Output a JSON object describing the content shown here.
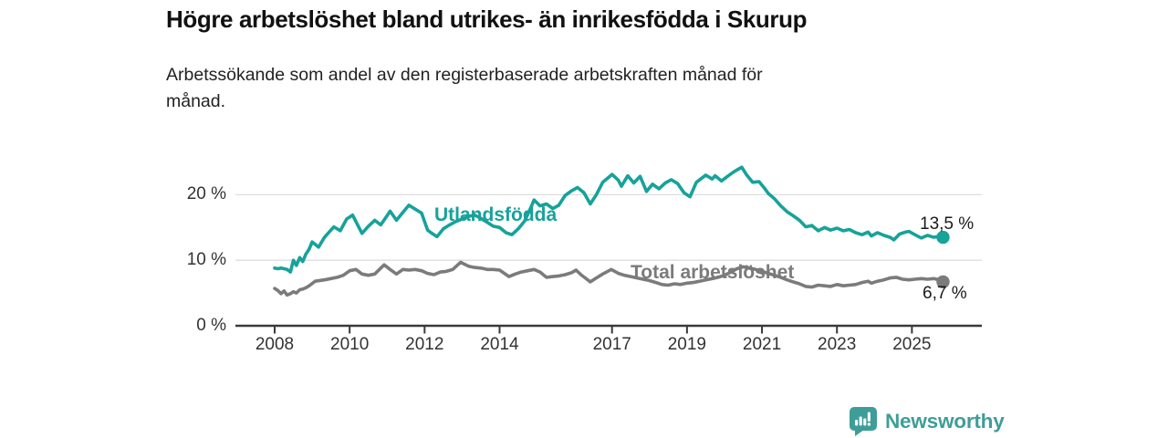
{
  "header": {
    "title": "Högre arbetslöshet bland utrikes- än inrikesfödda i Skurup",
    "subtitle": "Arbetssökande som andel av den registerbaserade arbetskraften månad för\nmånad."
  },
  "footer": {
    "brand": "Newsworthy"
  },
  "colors": {
    "accent_teal": "#17a29a",
    "line_gray": "#7b7b7b",
    "logo_teal": "#3f9d98",
    "grid": "#dedede",
    "axis": "#3a3a3a",
    "tick_text": "#333333",
    "title_text": "#111111"
  },
  "chart_data": {
    "type": "line",
    "title": "Högre arbetslöshet bland utrikes- än inrikesfödda i Skurup",
    "subtitle": "Arbetssökande som andel av den registerbaserade arbetskraften månad för månad.",
    "xlabel": "",
    "ylabel": "%",
    "grid": "horizontal",
    "x_axis": {
      "ticks": [
        2008,
        2010,
        2012,
        2014,
        2017,
        2019,
        2021,
        2023,
        2025
      ],
      "tick_labels": [
        "2008",
        "2010",
        "2012",
        "2014",
        "2017",
        "2019",
        "2021",
        "2023",
        "2025"
      ],
      "range": [
        2006.95,
        2026.85
      ]
    },
    "y_axis": {
      "ticks": [
        0,
        10,
        20
      ],
      "tick_labels": [
        "0 %",
        "10 %",
        "20 %"
      ],
      "range": [
        0,
        26
      ]
    },
    "series": [
      {
        "name": "Utlandsfödda",
        "color": "#17a29a",
        "end_label": "13,5 %",
        "last_value": 13.5,
        "points": [
          [
            2008.0,
            8.8
          ],
          [
            2008.08,
            8.7
          ],
          [
            2008.17,
            8.8
          ],
          [
            2008.25,
            8.7
          ],
          [
            2008.33,
            8.6
          ],
          [
            2008.42,
            8.2
          ],
          [
            2008.5,
            10.0
          ],
          [
            2008.58,
            9.2
          ],
          [
            2008.67,
            10.4
          ],
          [
            2008.75,
            9.8
          ],
          [
            2008.83,
            10.9
          ],
          [
            2008.92,
            11.7
          ],
          [
            2009.0,
            12.8
          ],
          [
            2009.17,
            12.0
          ],
          [
            2009.33,
            13.5
          ],
          [
            2009.5,
            14.6
          ],
          [
            2009.58,
            15.1
          ],
          [
            2009.75,
            14.5
          ],
          [
            2009.92,
            16.3
          ],
          [
            2010.08,
            16.9
          ],
          [
            2010.25,
            15.0
          ],
          [
            2010.33,
            14.1
          ],
          [
            2010.5,
            15.2
          ],
          [
            2010.67,
            16.1
          ],
          [
            2010.83,
            15.4
          ],
          [
            2011.0,
            16.8
          ],
          [
            2011.08,
            17.5
          ],
          [
            2011.25,
            16.1
          ],
          [
            2011.42,
            17.3
          ],
          [
            2011.58,
            18.4
          ],
          [
            2011.75,
            17.8
          ],
          [
            2011.92,
            17.2
          ],
          [
            2012.08,
            14.6
          ],
          [
            2012.17,
            14.2
          ],
          [
            2012.33,
            13.6
          ],
          [
            2012.5,
            14.8
          ],
          [
            2012.67,
            15.4
          ],
          [
            2012.83,
            15.9
          ],
          [
            2013.0,
            16.3
          ],
          [
            2013.17,
            16.7
          ],
          [
            2013.33,
            16.9
          ],
          [
            2013.5,
            16.4
          ],
          [
            2013.67,
            15.8
          ],
          [
            2013.83,
            15.2
          ],
          [
            2014.0,
            15.0
          ],
          [
            2014.17,
            14.2
          ],
          [
            2014.33,
            13.9
          ],
          [
            2014.5,
            14.8
          ],
          [
            2014.67,
            16.0
          ],
          [
            2014.83,
            18.0
          ],
          [
            2014.92,
            19.2
          ],
          [
            2015.08,
            18.3
          ],
          [
            2015.25,
            18.6
          ],
          [
            2015.42,
            17.9
          ],
          [
            2015.58,
            18.4
          ],
          [
            2015.75,
            19.9
          ],
          [
            2015.92,
            20.6
          ],
          [
            2016.08,
            21.1
          ],
          [
            2016.25,
            20.3
          ],
          [
            2016.42,
            18.6
          ],
          [
            2016.58,
            20.0
          ],
          [
            2016.75,
            21.9
          ],
          [
            2016.92,
            22.7
          ],
          [
            2017.0,
            23.1
          ],
          [
            2017.17,
            22.2
          ],
          [
            2017.25,
            21.3
          ],
          [
            2017.42,
            22.9
          ],
          [
            2017.58,
            21.8
          ],
          [
            2017.75,
            22.8
          ],
          [
            2017.92,
            20.5
          ],
          [
            2018.08,
            21.6
          ],
          [
            2018.25,
            20.9
          ],
          [
            2018.42,
            21.8
          ],
          [
            2018.58,
            22.3
          ],
          [
            2018.75,
            21.7
          ],
          [
            2018.92,
            20.3
          ],
          [
            2019.08,
            19.7
          ],
          [
            2019.25,
            21.9
          ],
          [
            2019.5,
            23.0
          ],
          [
            2019.67,
            22.4
          ],
          [
            2019.75,
            22.9
          ],
          [
            2019.92,
            22.1
          ],
          [
            2020.08,
            22.8
          ],
          [
            2020.25,
            23.5
          ],
          [
            2020.46,
            24.2
          ],
          [
            2020.58,
            23.1
          ],
          [
            2020.75,
            21.9
          ],
          [
            2020.92,
            22.0
          ],
          [
            2021.08,
            20.9
          ],
          [
            2021.17,
            20.2
          ],
          [
            2021.33,
            19.4
          ],
          [
            2021.5,
            18.3
          ],
          [
            2021.67,
            17.4
          ],
          [
            2021.83,
            16.8
          ],
          [
            2022.0,
            16.1
          ],
          [
            2022.17,
            15.1
          ],
          [
            2022.33,
            15.3
          ],
          [
            2022.5,
            14.5
          ],
          [
            2022.67,
            15.0
          ],
          [
            2022.83,
            14.6
          ],
          [
            2023.0,
            14.9
          ],
          [
            2023.17,
            14.5
          ],
          [
            2023.33,
            14.7
          ],
          [
            2023.5,
            14.2
          ],
          [
            2023.67,
            13.9
          ],
          [
            2023.83,
            14.3
          ],
          [
            2023.92,
            13.7
          ],
          [
            2024.08,
            14.2
          ],
          [
            2024.25,
            13.8
          ],
          [
            2024.42,
            13.5
          ],
          [
            2024.52,
            13.1
          ],
          [
            2024.67,
            14.0
          ],
          [
            2024.83,
            14.3
          ],
          [
            2024.92,
            14.4
          ],
          [
            2025.08,
            13.9
          ],
          [
            2025.25,
            13.4
          ],
          [
            2025.42,
            13.8
          ],
          [
            2025.58,
            13.5
          ],
          [
            2025.75,
            13.7
          ],
          [
            2025.83,
            13.5
          ]
        ]
      },
      {
        "name": "Total arbetslöshet",
        "color": "#7b7b7b",
        "end_label": "6,7 %",
        "last_value": 6.7,
        "points": [
          [
            2008.0,
            5.7
          ],
          [
            2008.08,
            5.4
          ],
          [
            2008.17,
            4.9
          ],
          [
            2008.25,
            5.3
          ],
          [
            2008.33,
            4.7
          ],
          [
            2008.42,
            4.9
          ],
          [
            2008.5,
            5.2
          ],
          [
            2008.58,
            5.0
          ],
          [
            2008.67,
            5.5
          ],
          [
            2008.75,
            5.6
          ],
          [
            2008.83,
            5.8
          ],
          [
            2008.92,
            6.1
          ],
          [
            2009.08,
            6.8
          ],
          [
            2009.33,
            7.0
          ],
          [
            2009.5,
            7.2
          ],
          [
            2009.67,
            7.4
          ],
          [
            2009.83,
            7.7
          ],
          [
            2010.0,
            8.4
          ],
          [
            2010.17,
            8.6
          ],
          [
            2010.33,
            7.9
          ],
          [
            2010.5,
            7.7
          ],
          [
            2010.67,
            7.9
          ],
          [
            2010.92,
            9.3
          ],
          [
            2011.08,
            8.6
          ],
          [
            2011.25,
            7.9
          ],
          [
            2011.42,
            8.6
          ],
          [
            2011.58,
            8.5
          ],
          [
            2011.75,
            8.6
          ],
          [
            2011.92,
            8.4
          ],
          [
            2012.08,
            8.0
          ],
          [
            2012.25,
            7.8
          ],
          [
            2012.42,
            8.2
          ],
          [
            2012.58,
            8.3
          ],
          [
            2012.75,
            8.6
          ],
          [
            2012.96,
            9.7
          ],
          [
            2013.17,
            9.1
          ],
          [
            2013.33,
            8.9
          ],
          [
            2013.5,
            8.8
          ],
          [
            2013.67,
            8.6
          ],
          [
            2013.83,
            8.6
          ],
          [
            2014.0,
            8.5
          ],
          [
            2014.25,
            7.5
          ],
          [
            2014.42,
            7.9
          ],
          [
            2014.58,
            8.2
          ],
          [
            2014.75,
            8.4
          ],
          [
            2014.92,
            8.6
          ],
          [
            2015.08,
            8.2
          ],
          [
            2015.25,
            7.4
          ],
          [
            2015.42,
            7.5
          ],
          [
            2015.58,
            7.6
          ],
          [
            2015.75,
            7.8
          ],
          [
            2015.92,
            8.1
          ],
          [
            2016.04,
            8.5
          ],
          [
            2016.17,
            7.8
          ],
          [
            2016.33,
            7.1
          ],
          [
            2016.42,
            6.7
          ],
          [
            2016.58,
            7.3
          ],
          [
            2016.75,
            7.9
          ],
          [
            2016.98,
            8.6
          ],
          [
            2017.17,
            8.0
          ],
          [
            2017.33,
            7.7
          ],
          [
            2017.5,
            7.5
          ],
          [
            2017.67,
            7.3
          ],
          [
            2017.83,
            7.1
          ],
          [
            2018.0,
            6.9
          ],
          [
            2018.17,
            6.6
          ],
          [
            2018.33,
            6.3
          ],
          [
            2018.5,
            6.2
          ],
          [
            2018.67,
            6.4
          ],
          [
            2018.83,
            6.3
          ],
          [
            2019.0,
            6.5
          ],
          [
            2019.17,
            6.6
          ],
          [
            2019.33,
            6.8
          ],
          [
            2019.5,
            7.0
          ],
          [
            2019.67,
            7.2
          ],
          [
            2019.83,
            7.4
          ],
          [
            2020.0,
            7.7
          ],
          [
            2020.17,
            8.2
          ],
          [
            2020.33,
            8.7
          ],
          [
            2020.5,
            9.0
          ],
          [
            2020.67,
            8.8
          ],
          [
            2020.83,
            8.6
          ],
          [
            2021.0,
            8.3
          ],
          [
            2021.17,
            8.0
          ],
          [
            2021.33,
            7.7
          ],
          [
            2021.5,
            7.4
          ],
          [
            2021.67,
            7.0
          ],
          [
            2021.83,
            6.7
          ],
          [
            2022.0,
            6.4
          ],
          [
            2022.17,
            6.0
          ],
          [
            2022.33,
            5.9
          ],
          [
            2022.5,
            6.2
          ],
          [
            2022.67,
            6.1
          ],
          [
            2022.83,
            6.0
          ],
          [
            2023.0,
            6.3
          ],
          [
            2023.17,
            6.1
          ],
          [
            2023.33,
            6.2
          ],
          [
            2023.5,
            6.3
          ],
          [
            2023.67,
            6.6
          ],
          [
            2023.83,
            6.8
          ],
          [
            2023.92,
            6.5
          ],
          [
            2024.08,
            6.8
          ],
          [
            2024.25,
            7.0
          ],
          [
            2024.42,
            7.3
          ],
          [
            2024.58,
            7.4
          ],
          [
            2024.75,
            7.1
          ],
          [
            2024.92,
            7.0
          ],
          [
            2025.08,
            7.1
          ],
          [
            2025.25,
            7.2
          ],
          [
            2025.42,
            7.1
          ],
          [
            2025.58,
            7.2
          ],
          [
            2025.75,
            7.0
          ],
          [
            2025.83,
            6.7
          ]
        ]
      }
    ]
  }
}
